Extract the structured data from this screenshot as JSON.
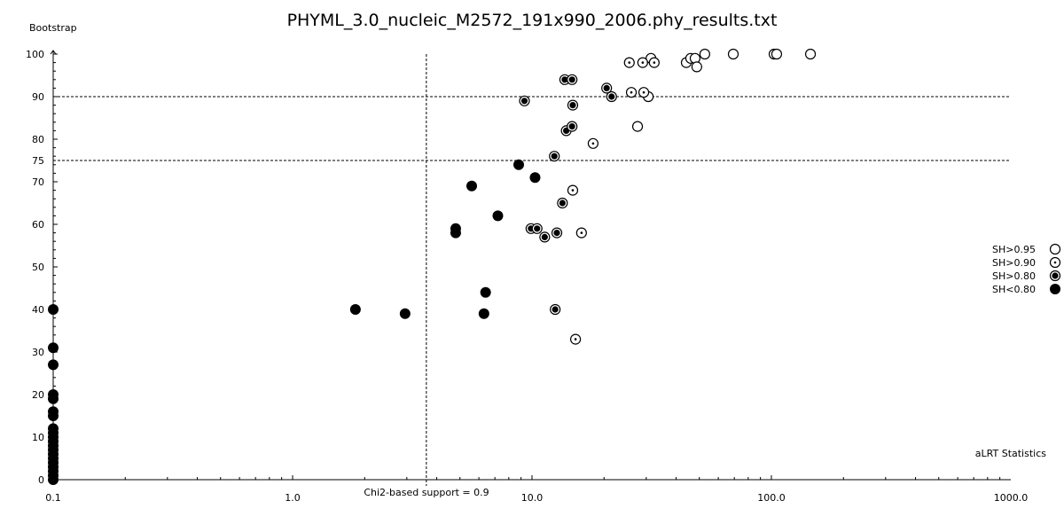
{
  "chart_data": {
    "type": "scatter",
    "title": "PHYML_3.0_nucleic_M2572_191x990_2006.phy_results.txt",
    "xlabel": "aLRT Statistics",
    "ylabel": "Bootstrap",
    "xscale": "log",
    "xlim": [
      0.1,
      1000.0
    ],
    "ylim": [
      0,
      100
    ],
    "x_ticks": [
      "0.1",
      "1.0",
      "10.0",
      "100.0",
      "1000.0"
    ],
    "y_ticks": [
      "0",
      "10",
      "20",
      "30",
      "40",
      "50",
      "60",
      "70",
      "75",
      "80",
      "90",
      "100"
    ],
    "grid": false,
    "reference_lines": {
      "horizontal": [
        90,
        75
      ],
      "vertical": {
        "x": 3.62,
        "label": "Chi2-based support = 0.9"
      }
    },
    "legend_position": "right",
    "series": [
      {
        "name": "SH>0.95",
        "marker": "open-circle",
        "points": [
          [
            31.4,
            99
          ],
          [
            44.1,
            98
          ],
          [
            46.0,
            99
          ],
          [
            48.0,
            99
          ],
          [
            48.8,
            97
          ],
          [
            52.7,
            100
          ],
          [
            69.3,
            100
          ],
          [
            102.6,
            100
          ],
          [
            105.2,
            100
          ],
          [
            145.6,
            100
          ],
          [
            27.6,
            83
          ],
          [
            30.6,
            90
          ]
        ]
      },
      {
        "name": "SH>0.90",
        "marker": "dotted-circle",
        "points": [
          [
            25.5,
            98
          ],
          [
            29.0,
            98
          ],
          [
            32.4,
            98
          ],
          [
            26.0,
            91
          ],
          [
            29.3,
            91
          ],
          [
            18.0,
            79
          ],
          [
            14.8,
            68
          ],
          [
            16.1,
            58
          ],
          [
            15.2,
            33
          ]
        ]
      },
      {
        "name": "SH>0.80",
        "marker": "ringed-dot",
        "points": [
          [
            13.7,
            94
          ],
          [
            14.7,
            94
          ],
          [
            20.5,
            92
          ],
          [
            21.5,
            90
          ],
          [
            9.3,
            89
          ],
          [
            14.8,
            88
          ],
          [
            13.9,
            82
          ],
          [
            14.7,
            83
          ],
          [
            12.4,
            76
          ],
          [
            13.4,
            65
          ],
          [
            9.9,
            59
          ],
          [
            10.5,
            59
          ],
          [
            11.3,
            57
          ],
          [
            12.7,
            58
          ],
          [
            12.5,
            40
          ]
        ]
      },
      {
        "name": "SH<0.80",
        "marker": "filled-circle",
        "points": [
          [
            8.8,
            74
          ],
          [
            10.3,
            71
          ],
          [
            5.6,
            69
          ],
          [
            7.2,
            62
          ],
          [
            4.8,
            59
          ],
          [
            4.8,
            58
          ],
          [
            6.4,
            44
          ],
          [
            1.83,
            40
          ],
          [
            2.95,
            39
          ],
          [
            6.3,
            39
          ],
          [
            0.1,
            40
          ],
          [
            0.1,
            31
          ],
          [
            0.1,
            27
          ],
          [
            0.1,
            20
          ],
          [
            0.1,
            19
          ],
          [
            0.1,
            16
          ],
          [
            0.1,
            15
          ],
          [
            0.1,
            12
          ],
          [
            0.1,
            11
          ],
          [
            0.1,
            10
          ],
          [
            0.1,
            9
          ],
          [
            0.1,
            8
          ],
          [
            0.1,
            7
          ],
          [
            0.1,
            6
          ],
          [
            0.1,
            5
          ],
          [
            0.1,
            4
          ],
          [
            0.1,
            3
          ],
          [
            0.1,
            2
          ],
          [
            0.1,
            1
          ],
          [
            0.1,
            0
          ]
        ]
      }
    ]
  }
}
